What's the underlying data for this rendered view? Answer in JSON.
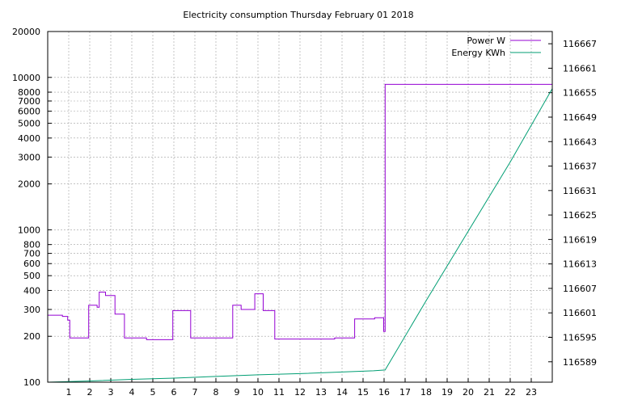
{
  "chart_data": {
    "type": "line",
    "title": "Electricity consumption Thursday February 01 2018",
    "xlabel": "",
    "ylabel": "",
    "y2label": "",
    "x_ticks": [
      "1",
      "2",
      "3",
      "4",
      "5",
      "6",
      "7",
      "8",
      "9",
      "10",
      "11",
      "12",
      "13",
      "14",
      "15",
      "16",
      "17",
      "18",
      "19",
      "20",
      "21",
      "22",
      "23"
    ],
    "y_ticks": [
      "100",
      "200",
      "300",
      "400",
      "500",
      "600",
      "700",
      "800",
      "1000",
      "2000",
      "3000",
      "4000",
      "5000",
      "6000",
      "7000",
      "8000",
      "10000",
      "20000"
    ],
    "y2_ticks": [
      "116589",
      "116595",
      "116601",
      "116607",
      "116613",
      "116619",
      "116625",
      "116631",
      "116637",
      "116643",
      "116649",
      "116655",
      "116661",
      "116667"
    ],
    "xlim": [
      0,
      24
    ],
    "ylim": [
      100,
      20000
    ],
    "y_scale": "log",
    "y2lim": [
      116584,
      116670
    ],
    "grid": true,
    "legend_position": "top-right",
    "series": [
      {
        "name": "Power W",
        "color": "#9400d3",
        "axis": "y",
        "x": [
          0,
          0.7,
          0.7,
          0.95,
          0.95,
          1.05,
          1.05,
          1.95,
          1.95,
          2.35,
          2.35,
          2.45,
          2.45,
          2.75,
          2.75,
          3.2,
          3.2,
          3.65,
          3.65,
          4.7,
          4.7,
          5.95,
          5.95,
          6.8,
          6.8,
          8.8,
          8.8,
          9.2,
          9.2,
          9.85,
          9.85,
          10.25,
          10.25,
          10.8,
          10.8,
          13.65,
          13.65,
          14.6,
          14.6,
          15.55,
          15.55,
          15.98,
          15.98,
          16.05,
          16.05,
          24
        ],
        "y": [
          275,
          275,
          270,
          270,
          255,
          255,
          195,
          195,
          320,
          320,
          310,
          310,
          390,
          390,
          370,
          370,
          280,
          280,
          195,
          195,
          190,
          190,
          295,
          295,
          195,
          195,
          320,
          320,
          300,
          300,
          380,
          380,
          295,
          295,
          192,
          192,
          195,
          195,
          260,
          260,
          265,
          265,
          215,
          215,
          9000,
          9000
        ]
      },
      {
        "name": "Energy KWh",
        "color": "#009e73",
        "axis": "y2",
        "x": [
          0,
          2,
          4,
          6,
          8,
          10,
          12,
          14,
          15.5,
          16.05,
          18,
          20,
          22,
          24
        ],
        "y": [
          116584.0,
          116584.3,
          116584.7,
          116585.0,
          116585.4,
          116585.8,
          116586.1,
          116586.5,
          116586.8,
          116587.0,
          116604.0,
          116621.0,
          116638.0,
          116656.0
        ]
      }
    ]
  }
}
